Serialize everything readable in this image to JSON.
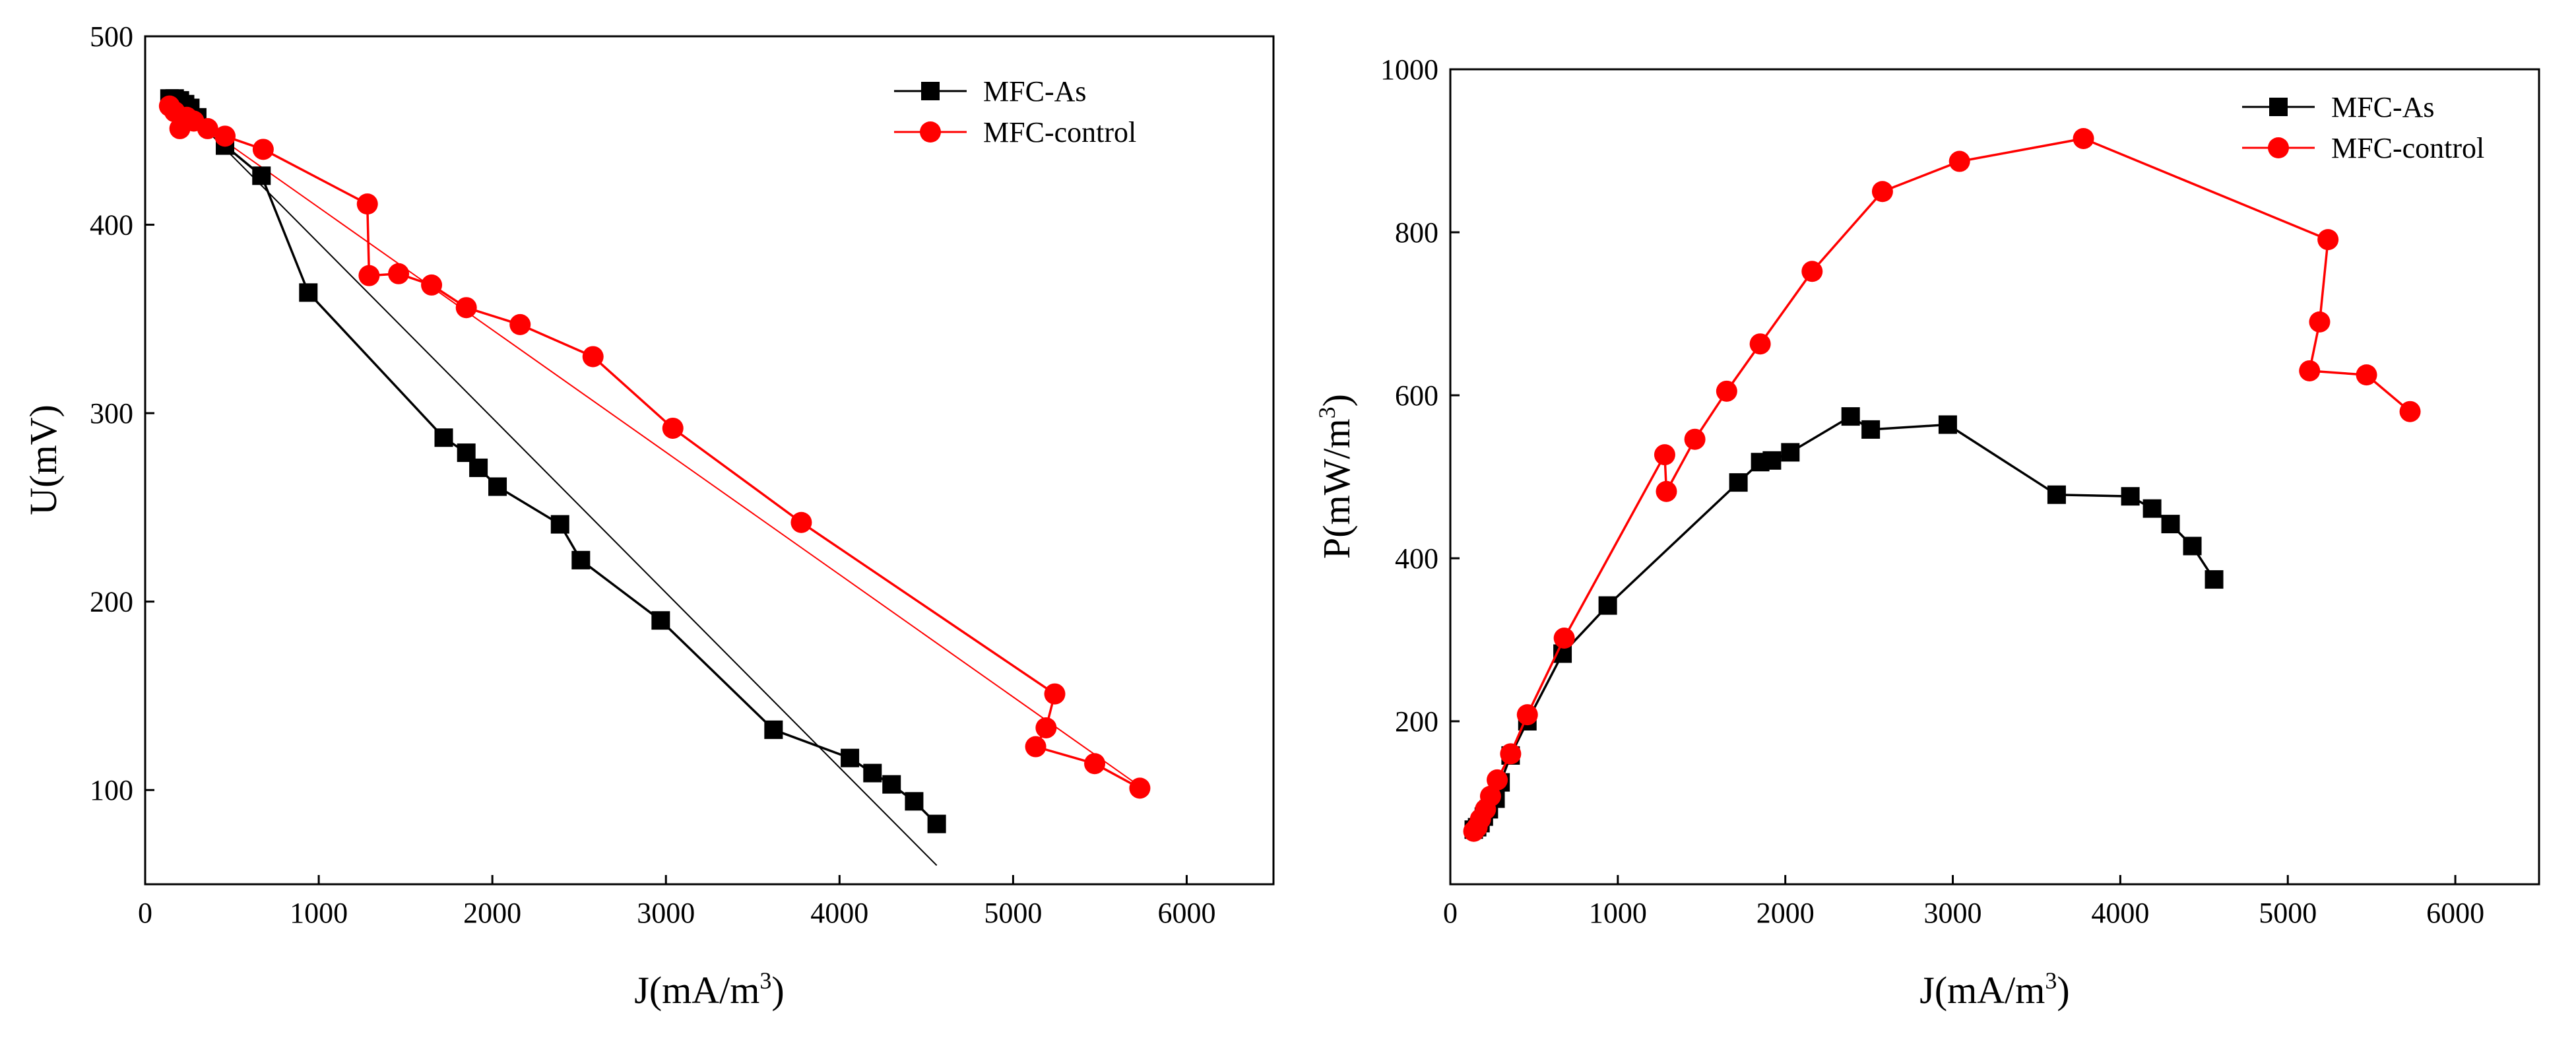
{
  "chart_data": [
    {
      "type": "line",
      "title": "",
      "xlabel": "J(mA/m",
      "xlabel_sup": "3",
      "xlabel_close": ")",
      "ylabel": "U(mV)",
      "xlim": [
        0,
        6500
      ],
      "ylim": [
        50,
        500
      ],
      "xticks": [
        0,
        1000,
        2000,
        3000,
        4000,
        5000,
        6000
      ],
      "yticks": [
        100,
        200,
        300,
        400,
        500
      ],
      "xtick_labels": [
        "0",
        "1000",
        "2000",
        "3000",
        "4000",
        "5000",
        "6000"
      ],
      "ytick_labels": [
        "100",
        "200",
        "300",
        "400",
        "500"
      ],
      "legend_position": "top-right",
      "series": [
        {
          "name": "MFC-As",
          "color": "#000000",
          "marker": "square",
          "x": [
            140,
            170,
            200,
            230,
            260,
            300,
            460,
            670,
            940,
            1720,
            1850,
            1920,
            2030,
            2390,
            2510,
            2970,
            3620,
            4060,
            4190,
            4300,
            4430,
            4560
          ],
          "y": [
            467,
            467,
            466,
            464,
            462,
            457,
            442,
            426,
            364,
            287,
            279,
            271,
            261,
            241,
            222,
            190,
            132,
            117,
            109,
            103,
            94,
            82
          ],
          "fit": {
            "x": [
              140,
              4560
            ],
            "y": [
              470,
              60
            ],
            "color": "#000000"
          }
        },
        {
          "name": "MFC-control",
          "color": "#ff0000",
          "marker": "circle",
          "x": [
            140,
            170,
            200,
            240,
            280,
            360,
            460,
            680,
            1280,
            1290,
            1460,
            1650,
            1850,
            2160,
            2580,
            3040,
            3780,
            5240,
            5190,
            5130,
            5470,
            5730
          ],
          "y": [
            463,
            460,
            451,
            457,
            455,
            451,
            447,
            440,
            411,
            373,
            374,
            368,
            356,
            347,
            330,
            292,
            242,
            151,
            133,
            123,
            114,
            101
          ],
          "fit": {
            "x": [
              140,
              5730
            ],
            "y": [
              465,
              102
            ],
            "color": "#ff0000"
          }
        }
      ]
    },
    {
      "type": "line",
      "title": "",
      "xlabel": "J(mA/m",
      "xlabel_sup": "3",
      "xlabel_close": ")",
      "ylabel": "P(mW/m",
      "ylabel_sup": "3",
      "ylabel_close": ")",
      "xlim": [
        0,
        6500
      ],
      "ylim": [
        0,
        1000
      ],
      "xticks": [
        0,
        1000,
        2000,
        3000,
        4000,
        5000,
        6000
      ],
      "yticks": [
        200,
        400,
        600,
        800,
        1000
      ],
      "xtick_labels": [
        "0",
        "1000",
        "2000",
        "3000",
        "4000",
        "5000",
        "6000"
      ],
      "ytick_labels": [
        "200",
        "400",
        "600",
        "800",
        "1000"
      ],
      "legend_position": "top-right",
      "series": [
        {
          "name": "MFC-As",
          "color": "#000000",
          "marker": "square",
          "x": [
            140,
            160,
            180,
            200,
            230,
            270,
            300,
            360,
            460,
            670,
            940,
            1720,
            1850,
            1920,
            2030,
            2390,
            2510,
            2970,
            3620,
            4060,
            4190,
            4300,
            4430,
            4560
          ],
          "y": [
            67,
            70,
            75,
            83,
            92,
            105,
            125,
            158,
            200,
            283,
            342,
            493,
            518,
            520,
            530,
            574,
            558,
            564,
            478,
            476,
            461,
            442,
            415,
            374
          ],
          "fit": null
        },
        {
          "name": "MFC-control",
          "color": "#ff0000",
          "marker": "circle",
          "x": [
            140,
            160,
            180,
            210,
            240,
            280,
            360,
            460,
            680,
            1280,
            1290,
            1460,
            1650,
            1850,
            2160,
            2580,
            3040,
            3780,
            5240,
            5190,
            5130,
            5470,
            5730
          ],
          "y": [
            65,
            70,
            80,
            92,
            108,
            128,
            160,
            208,
            302,
            527,
            482,
            546,
            605,
            663,
            752,
            850,
            887,
            915,
            791,
            690,
            630,
            625,
            580
          ],
          "fit": null
        }
      ]
    }
  ]
}
